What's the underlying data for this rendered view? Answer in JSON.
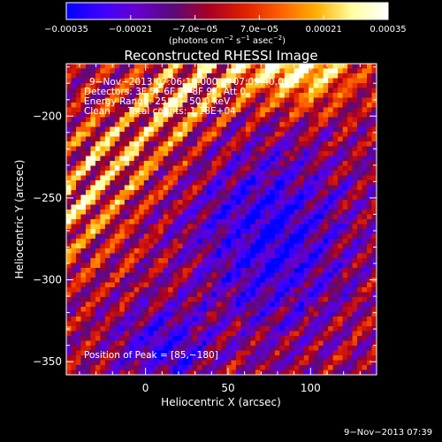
{
  "chart_data": {
    "type": "heatmap",
    "title": "Reconstructed RHESSI Image",
    "xlabel": "Heliocentric X (arcsec)",
    "ylabel": "Heliocentric Y (arcsec)",
    "xlim": [
      -48,
      140
    ],
    "ylim": [
      -358,
      -168
    ],
    "x_ticks": [
      0,
      50,
      100
    ],
    "y_ticks": [
      -200,
      -250,
      -300,
      -350
    ],
    "x_tick_labels": [
      "0",
      "50",
      "100"
    ],
    "y_tick_labels": [
      "−200",
      "−250",
      "−300",
      "−350"
    ],
    "colorbar": {
      "min": -0.00035,
      "max": 0.00035,
      "tick_values": [
        -0.00035,
        -0.00021,
        -7e-05,
        7e-05,
        0.00021,
        0.00035
      ],
      "tick_labels": [
        "−0.00035",
        "−0.00021",
        "−7.0e−05",
        "7.0e−05",
        "0.00021",
        "0.00035"
      ],
      "label_pre": "(photons cm",
      "label_sup1": "−2",
      "label_mid": " s",
      "label_sup2": "−1",
      "label_mid2": " asec",
      "label_sup3": "−2",
      "label_post": ")",
      "colors": [
        "#0000ff",
        "#3f00ff",
        "#6600cc",
        "#5a0a7a",
        "#aa0022",
        "#e02000",
        "#ff6000",
        "#ffb000",
        "#ffffa0",
        "#ffffff"
      ]
    },
    "peak": [
      85,
      -180
    ]
  },
  "annotations": {
    "time_range": "9−Nov−2013 07:06:10.000 to 07:09:40.000",
    "detectors": "Detectors: 3F 5F 6F 7F 8F 9F, Att 0",
    "energy": "Energy Range: 25.0 − 50.0 keV",
    "clean": "Clean      Total counts: 1.18E+04",
    "peak_label": "Position of Peak = [85,−180]"
  },
  "footer": {
    "timestamp": "9−Nov−2013 07:39"
  }
}
